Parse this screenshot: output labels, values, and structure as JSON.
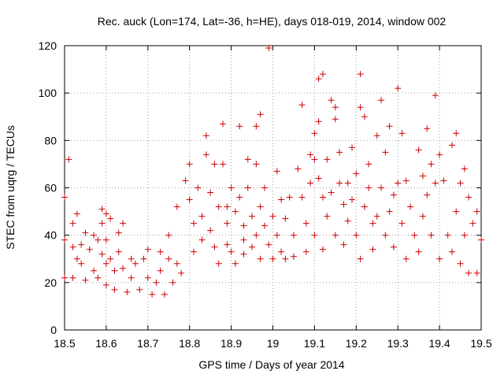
{
  "chart_data": {
    "type": "scatter",
    "title": "Rec. auck (Lon=174, Lat=-36, h=HE), days 018-019, 2014, window 002",
    "xlabel": "GPS time / Days of year 2014",
    "ylabel": "STEC from uqrg / TECUs",
    "xlim": [
      18.5,
      19.5
    ],
    "ylim": [
      0,
      120
    ],
    "x_ticks": [
      "18.5",
      "18.6",
      "18.7",
      "18.8",
      "18.9",
      "19",
      "19.1",
      "19.2",
      "19.3",
      "19.4",
      "19.5"
    ],
    "y_ticks": [
      "0",
      "20",
      "40",
      "60",
      "80",
      "100",
      "120"
    ],
    "grid": true,
    "legend": "none",
    "marker": "+",
    "color": "#cc0000",
    "points": [
      [
        18.5,
        56
      ],
      [
        18.51,
        72
      ],
      [
        18.5,
        38
      ],
      [
        18.5,
        22
      ],
      [
        18.52,
        45
      ],
      [
        18.53,
        49
      ],
      [
        18.52,
        35
      ],
      [
        18.53,
        30
      ],
      [
        18.52,
        22
      ],
      [
        18.54,
        36
      ],
      [
        18.54,
        28
      ],
      [
        18.55,
        21
      ],
      [
        18.55,
        41
      ],
      [
        18.56,
        34
      ],
      [
        18.57,
        25
      ],
      [
        18.57,
        40
      ],
      [
        18.58,
        38
      ],
      [
        18.58,
        22
      ],
      [
        18.59,
        51
      ],
      [
        18.59,
        45
      ],
      [
        18.59,
        32
      ],
      [
        18.6,
        49
      ],
      [
        18.6,
        38
      ],
      [
        18.6,
        28
      ],
      [
        18.6,
        19
      ],
      [
        18.61,
        47
      ],
      [
        18.61,
        30
      ],
      [
        18.62,
        25
      ],
      [
        18.62,
        17
      ],
      [
        18.63,
        41
      ],
      [
        18.63,
        33
      ],
      [
        18.64,
        45
      ],
      [
        18.64,
        26
      ],
      [
        18.65,
        16
      ],
      [
        18.66,
        30
      ],
      [
        18.66,
        22
      ],
      [
        18.67,
        28
      ],
      [
        18.68,
        17
      ],
      [
        18.69,
        30
      ],
      [
        18.7,
        34
      ],
      [
        18.7,
        22
      ],
      [
        18.71,
        15
      ],
      [
        18.72,
        20
      ],
      [
        18.73,
        33
      ],
      [
        18.73,
        25
      ],
      [
        18.74,
        15
      ],
      [
        18.75,
        40
      ],
      [
        18.75,
        30
      ],
      [
        18.76,
        20
      ],
      [
        18.77,
        52
      ],
      [
        18.77,
        28
      ],
      [
        18.78,
        24
      ],
      [
        18.79,
        63
      ],
      [
        18.8,
        70
      ],
      [
        18.8,
        55
      ],
      [
        18.81,
        45
      ],
      [
        18.81,
        33
      ],
      [
        18.82,
        60
      ],
      [
        18.83,
        48
      ],
      [
        18.83,
        38
      ],
      [
        18.84,
        82
      ],
      [
        18.84,
        74
      ],
      [
        18.85,
        58
      ],
      [
        18.85,
        42
      ],
      [
        18.86,
        70
      ],
      [
        18.86,
        35
      ],
      [
        18.87,
        52
      ],
      [
        18.87,
        28
      ],
      [
        18.88,
        87
      ],
      [
        18.88,
        70
      ],
      [
        18.89,
        52
      ],
      [
        18.89,
        45
      ],
      [
        18.89,
        36
      ],
      [
        18.9,
        60
      ],
      [
        18.9,
        33
      ],
      [
        18.91,
        50
      ],
      [
        18.91,
        28
      ],
      [
        18.92,
        86
      ],
      [
        18.92,
        56
      ],
      [
        18.93,
        44
      ],
      [
        18.93,
        38
      ],
      [
        18.93,
        32
      ],
      [
        18.94,
        72
      ],
      [
        18.94,
        60
      ],
      [
        18.95,
        48
      ],
      [
        18.95,
        35
      ],
      [
        18.96,
        86
      ],
      [
        18.96,
        70
      ],
      [
        18.96,
        40
      ],
      [
        18.97,
        91
      ],
      [
        18.97,
        52
      ],
      [
        18.97,
        30
      ],
      [
        18.98,
        60
      ],
      [
        18.98,
        44
      ],
      [
        18.99,
        119
      ],
      [
        18.99,
        36
      ],
      [
        19.0,
        48
      ],
      [
        19.0,
        30
      ],
      [
        19.01,
        67
      ],
      [
        19.01,
        40
      ],
      [
        19.02,
        55
      ],
      [
        19.02,
        33
      ],
      [
        19.03,
        47
      ],
      [
        19.03,
        30
      ],
      [
        19.04,
        56
      ],
      [
        19.05,
        40
      ],
      [
        19.05,
        31
      ],
      [
        19.06,
        68
      ],
      [
        19.07,
        95
      ],
      [
        19.07,
        56
      ],
      [
        19.08,
        45
      ],
      [
        19.08,
        33
      ],
      [
        19.09,
        74
      ],
      [
        19.09,
        62
      ],
      [
        19.1,
        83
      ],
      [
        19.1,
        72
      ],
      [
        19.1,
        40
      ],
      [
        19.11,
        106
      ],
      [
        19.11,
        88
      ],
      [
        19.11,
        64
      ],
      [
        19.12,
        108
      ],
      [
        19.12,
        56
      ],
      [
        19.12,
        34
      ],
      [
        19.13,
        72
      ],
      [
        19.13,
        48
      ],
      [
        19.14,
        97
      ],
      [
        19.14,
        58
      ],
      [
        19.15,
        94
      ],
      [
        19.15,
        89
      ],
      [
        19.15,
        40
      ],
      [
        19.16,
        75
      ],
      [
        19.16,
        62
      ],
      [
        19.17,
        53
      ],
      [
        19.17,
        36
      ],
      [
        19.18,
        62
      ],
      [
        19.18,
        46
      ],
      [
        19.19,
        77
      ],
      [
        19.19,
        55
      ],
      [
        19.2,
        66
      ],
      [
        19.2,
        40
      ],
      [
        19.21,
        108
      ],
      [
        19.21,
        94
      ],
      [
        19.21,
        30
      ],
      [
        19.22,
        90
      ],
      [
        19.22,
        52
      ],
      [
        19.23,
        70
      ],
      [
        19.23,
        60
      ],
      [
        19.24,
        45
      ],
      [
        19.24,
        34
      ],
      [
        19.25,
        82
      ],
      [
        19.25,
        48
      ],
      [
        19.26,
        97
      ],
      [
        19.26,
        60
      ],
      [
        19.27,
        75
      ],
      [
        19.27,
        40
      ],
      [
        19.28,
        86
      ],
      [
        19.28,
        50
      ],
      [
        19.29,
        57
      ],
      [
        19.29,
        35
      ],
      [
        19.3,
        102
      ],
      [
        19.3,
        62
      ],
      [
        19.31,
        83
      ],
      [
        19.31,
        45
      ],
      [
        19.32,
        63
      ],
      [
        19.32,
        30
      ],
      [
        19.33,
        52
      ],
      [
        19.34,
        40
      ],
      [
        19.35,
        76
      ],
      [
        19.35,
        33
      ],
      [
        19.36,
        65
      ],
      [
        19.36,
        48
      ],
      [
        19.37,
        85
      ],
      [
        19.37,
        57
      ],
      [
        19.38,
        70
      ],
      [
        19.38,
        40
      ],
      [
        19.39,
        99
      ],
      [
        19.39,
        62
      ],
      [
        19.4,
        74
      ],
      [
        19.4,
        30
      ],
      [
        19.41,
        63
      ],
      [
        19.42,
        40
      ],
      [
        19.43,
        78
      ],
      [
        19.43,
        33
      ],
      [
        19.44,
        83
      ],
      [
        19.44,
        50
      ],
      [
        19.45,
        62
      ],
      [
        19.45,
        28
      ],
      [
        19.46,
        68
      ],
      [
        19.46,
        40
      ],
      [
        19.47,
        56
      ],
      [
        19.47,
        24
      ],
      [
        19.48,
        45
      ],
      [
        19.49,
        50
      ],
      [
        19.49,
        24
      ],
      [
        19.5,
        38
      ]
    ]
  }
}
